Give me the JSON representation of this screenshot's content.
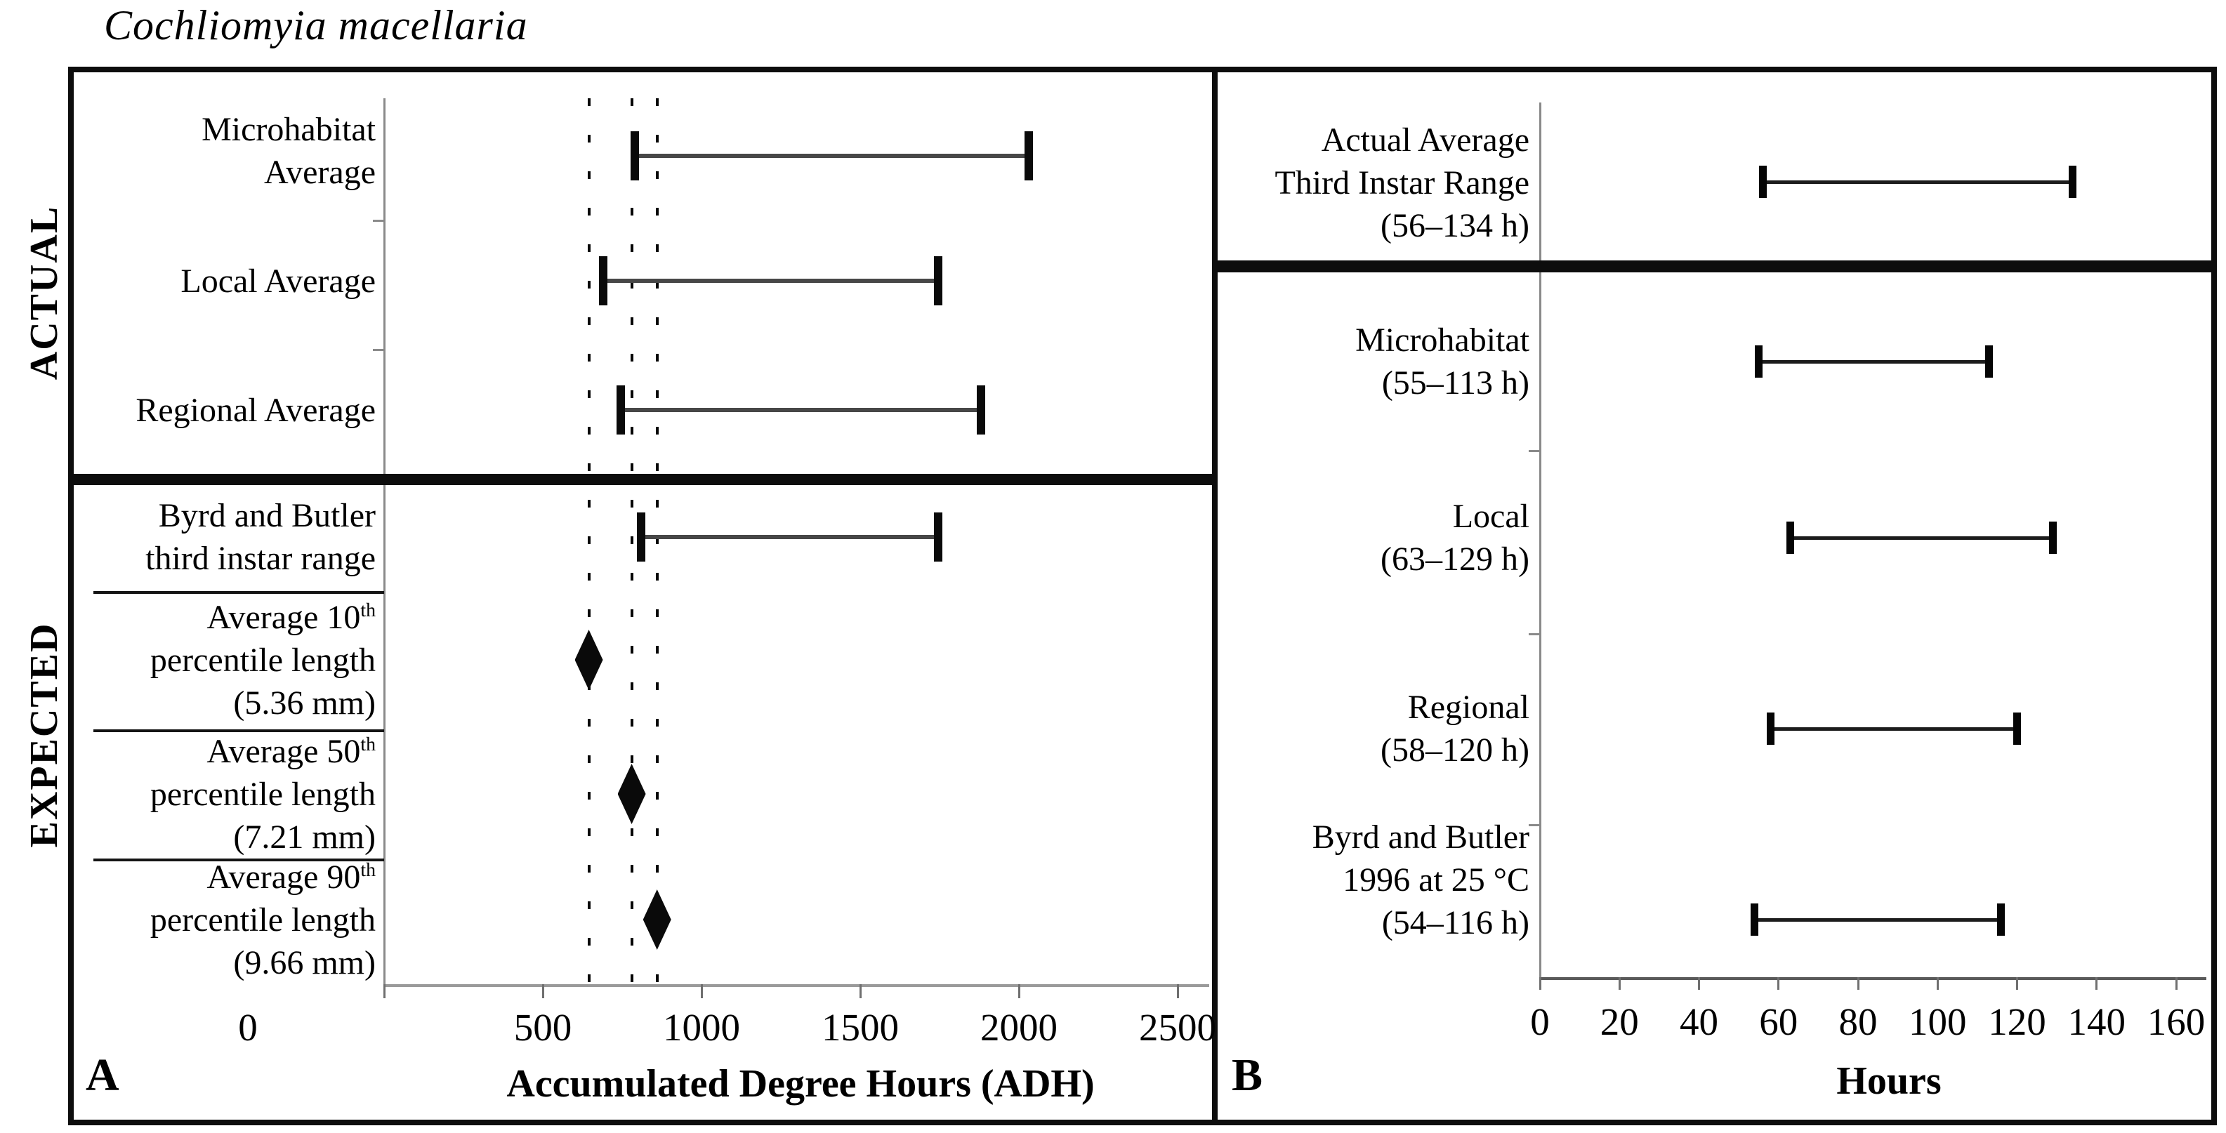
{
  "figure": {
    "title": "Cochliomyia macellaria",
    "row_group_labels": {
      "actual": "ACTUAL",
      "expected": "EXPECTED"
    },
    "panels": {
      "a_letter": "A",
      "b_letter": "B"
    },
    "colors": {
      "ink": "#000000",
      "bar_line_gray": "#474747",
      "axis_gray": "#9a9a9a",
      "background": "#ffffff"
    }
  },
  "chart_data": [
    {
      "panel": "A",
      "type": "range",
      "title": "Cochliomyia macellaria",
      "xlabel": "Accumulated Degree Hours (ADH)",
      "xlim": [
        0,
        2500
      ],
      "x_ticks": [
        0,
        500,
        1000,
        1500,
        2000,
        2500
      ],
      "grid": false,
      "reference_lines_x": [
        645,
        780,
        860
      ],
      "sections": [
        {
          "group": "ACTUAL",
          "rows": [
            {
              "label": "Microhabitat Average",
              "label_lines": [
                [
                  {
                    "t": "Microhabitat"
                  }
                ],
                [
                  {
                    "t": "Average"
                  }
                ]
              ],
              "range": [
                790,
                2030
              ]
            },
            {
              "label": "Local Average",
              "label_lines": [
                [
                  {
                    "t": "Local Average"
                  }
                ]
              ],
              "range": [
                690,
                1745
              ]
            },
            {
              "label": "Regional Average",
              "label_lines": [
                [
                  {
                    "t": "Regional Average"
                  }
                ]
              ],
              "range": [
                745,
                1880
              ]
            }
          ]
        },
        {
          "group": "EXPECTED",
          "rows": [
            {
              "label": "Byrd and Butler third instar range",
              "label_lines": [
                [
                  {
                    "t": "Byrd and Butler"
                  }
                ],
                [
                  {
                    "t": "third instar range"
                  }
                ]
              ],
              "range": [
                810,
                1745
              ]
            },
            {
              "label": "Average 10th percentile length (5.36 mm)",
              "label_lines": [
                [
                  {
                    "t": "Average 10"
                  },
                  {
                    "t": "th",
                    "sup": true
                  }
                ],
                [
                  {
                    "t": "percentile length"
                  }
                ],
                [
                  {
                    "t": "(5.36 mm)"
                  }
                ]
              ],
              "point": 645
            },
            {
              "label": "Average 50th percentile length (7.21 mm)",
              "label_lines": [
                [
                  {
                    "t": "Average 50"
                  },
                  {
                    "t": "th",
                    "sup": true
                  }
                ],
                [
                  {
                    "t": "percentile length"
                  }
                ],
                [
                  {
                    "t": "(7.21 mm)"
                  }
                ]
              ],
              "point": 780
            },
            {
              "label": "Average 90th percentile length (9.66 mm)",
              "label_lines": [
                [
                  {
                    "t": "Average 90"
                  },
                  {
                    "t": "th",
                    "sup": true
                  }
                ],
                [
                  {
                    "t": "percentile length"
                  }
                ],
                [
                  {
                    "t": "(9.66 mm)"
                  }
                ]
              ],
              "point": 860
            }
          ]
        }
      ]
    },
    {
      "panel": "B",
      "type": "range",
      "title": "",
      "xlabel": "Hours",
      "xlim": [
        0,
        160
      ],
      "x_ticks": [
        0,
        20,
        40,
        60,
        80,
        100,
        120,
        140,
        160
      ],
      "grid": false,
      "sections": [
        {
          "group": "",
          "rows": [
            {
              "label": "Actual Average Third Instar Range (56–134 h)",
              "label_lines": [
                [
                  {
                    "t": "Actual Average"
                  }
                ],
                [
                  {
                    "t": "Third Instar Range"
                  }
                ],
                [
                  {
                    "t": "(56–134 h)"
                  }
                ]
              ],
              "range": [
                56,
                134
              ]
            }
          ]
        },
        {
          "group": "",
          "rows": [
            {
              "label": "Microhabitat (55–113 h)",
              "label_lines": [
                [
                  {
                    "t": "Microhabitat"
                  }
                ],
                [
                  {
                    "t": "(55–113 h)"
                  }
                ]
              ],
              "range": [
                55,
                113
              ]
            },
            {
              "label": "Local (63–129 h)",
              "label_lines": [
                [
                  {
                    "t": "Local"
                  }
                ],
                [
                  {
                    "t": "(63–129 h)"
                  }
                ]
              ],
              "range": [
                63,
                129
              ]
            },
            {
              "label": "Regional (58–120 h)",
              "label_lines": [
                [
                  {
                    "t": "Regional"
                  }
                ],
                [
                  {
                    "t": "(58–120 h)"
                  }
                ]
              ],
              "range": [
                58,
                120
              ]
            },
            {
              "label": "Byrd and Butler 1996 at 25 °C (54–116 h)",
              "label_lines": [
                [
                  {
                    "t": "Byrd and Butler"
                  }
                ],
                [
                  {
                    "t": "1996 at 25 °C"
                  }
                ],
                [
                  {
                    "t": "(54–116 h)"
                  }
                ]
              ],
              "range": [
                54,
                116
              ]
            }
          ]
        }
      ]
    }
  ]
}
